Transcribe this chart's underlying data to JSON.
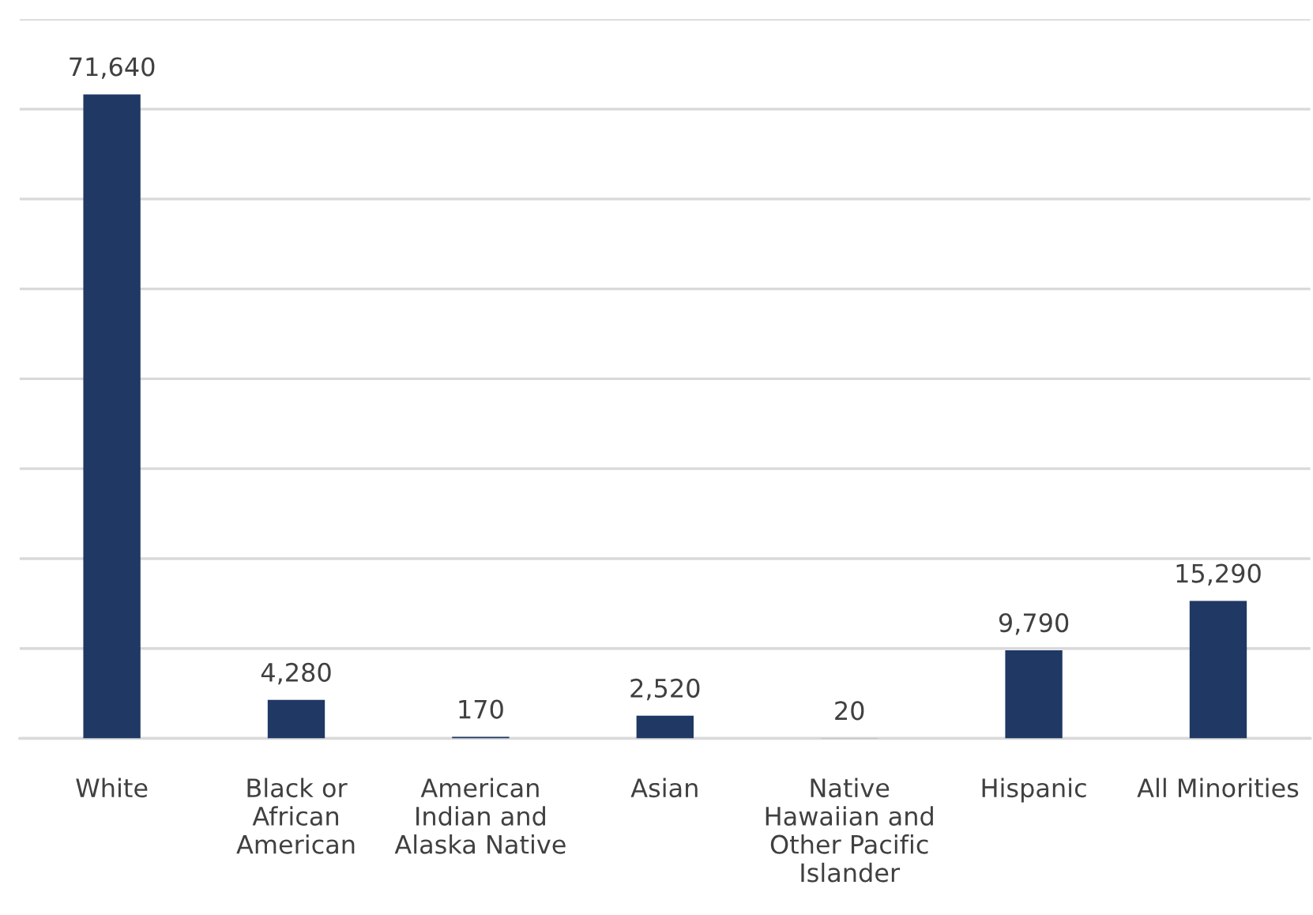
{
  "chart_data": {
    "type": "bar",
    "categories": [
      "White",
      "Black or\nAfrican\nAmerican",
      "American\nIndian and\nAlaska Native",
      "Asian",
      "Native\nHawaiian and\nOther Pacific\nIslander",
      "Hispanic",
      "All Minorities"
    ],
    "values": [
      71640,
      4280,
      170,
      2520,
      20,
      9790,
      15290
    ],
    "value_labels": [
      "71,640",
      "4,280",
      "170",
      "2,520",
      "20",
      "9,790",
      "15,290"
    ],
    "color": "#1f3864",
    "ylim": [
      0,
      80000
    ],
    "yticks": [
      {
        "value": 0,
        "label": null
      },
      {
        "value": 10000,
        "label": null
      },
      {
        "value": 20000,
        "label": null
      },
      {
        "value": 30000,
        "label": null
      },
      {
        "value": 40000,
        "label": null
      },
      {
        "value": 50000,
        "label": null
      },
      {
        "value": 60000,
        "label": null
      },
      {
        "value": 70000,
        "label": null
      },
      {
        "value": 80000,
        "label": null
      }
    ],
    "grid": "y"
  }
}
